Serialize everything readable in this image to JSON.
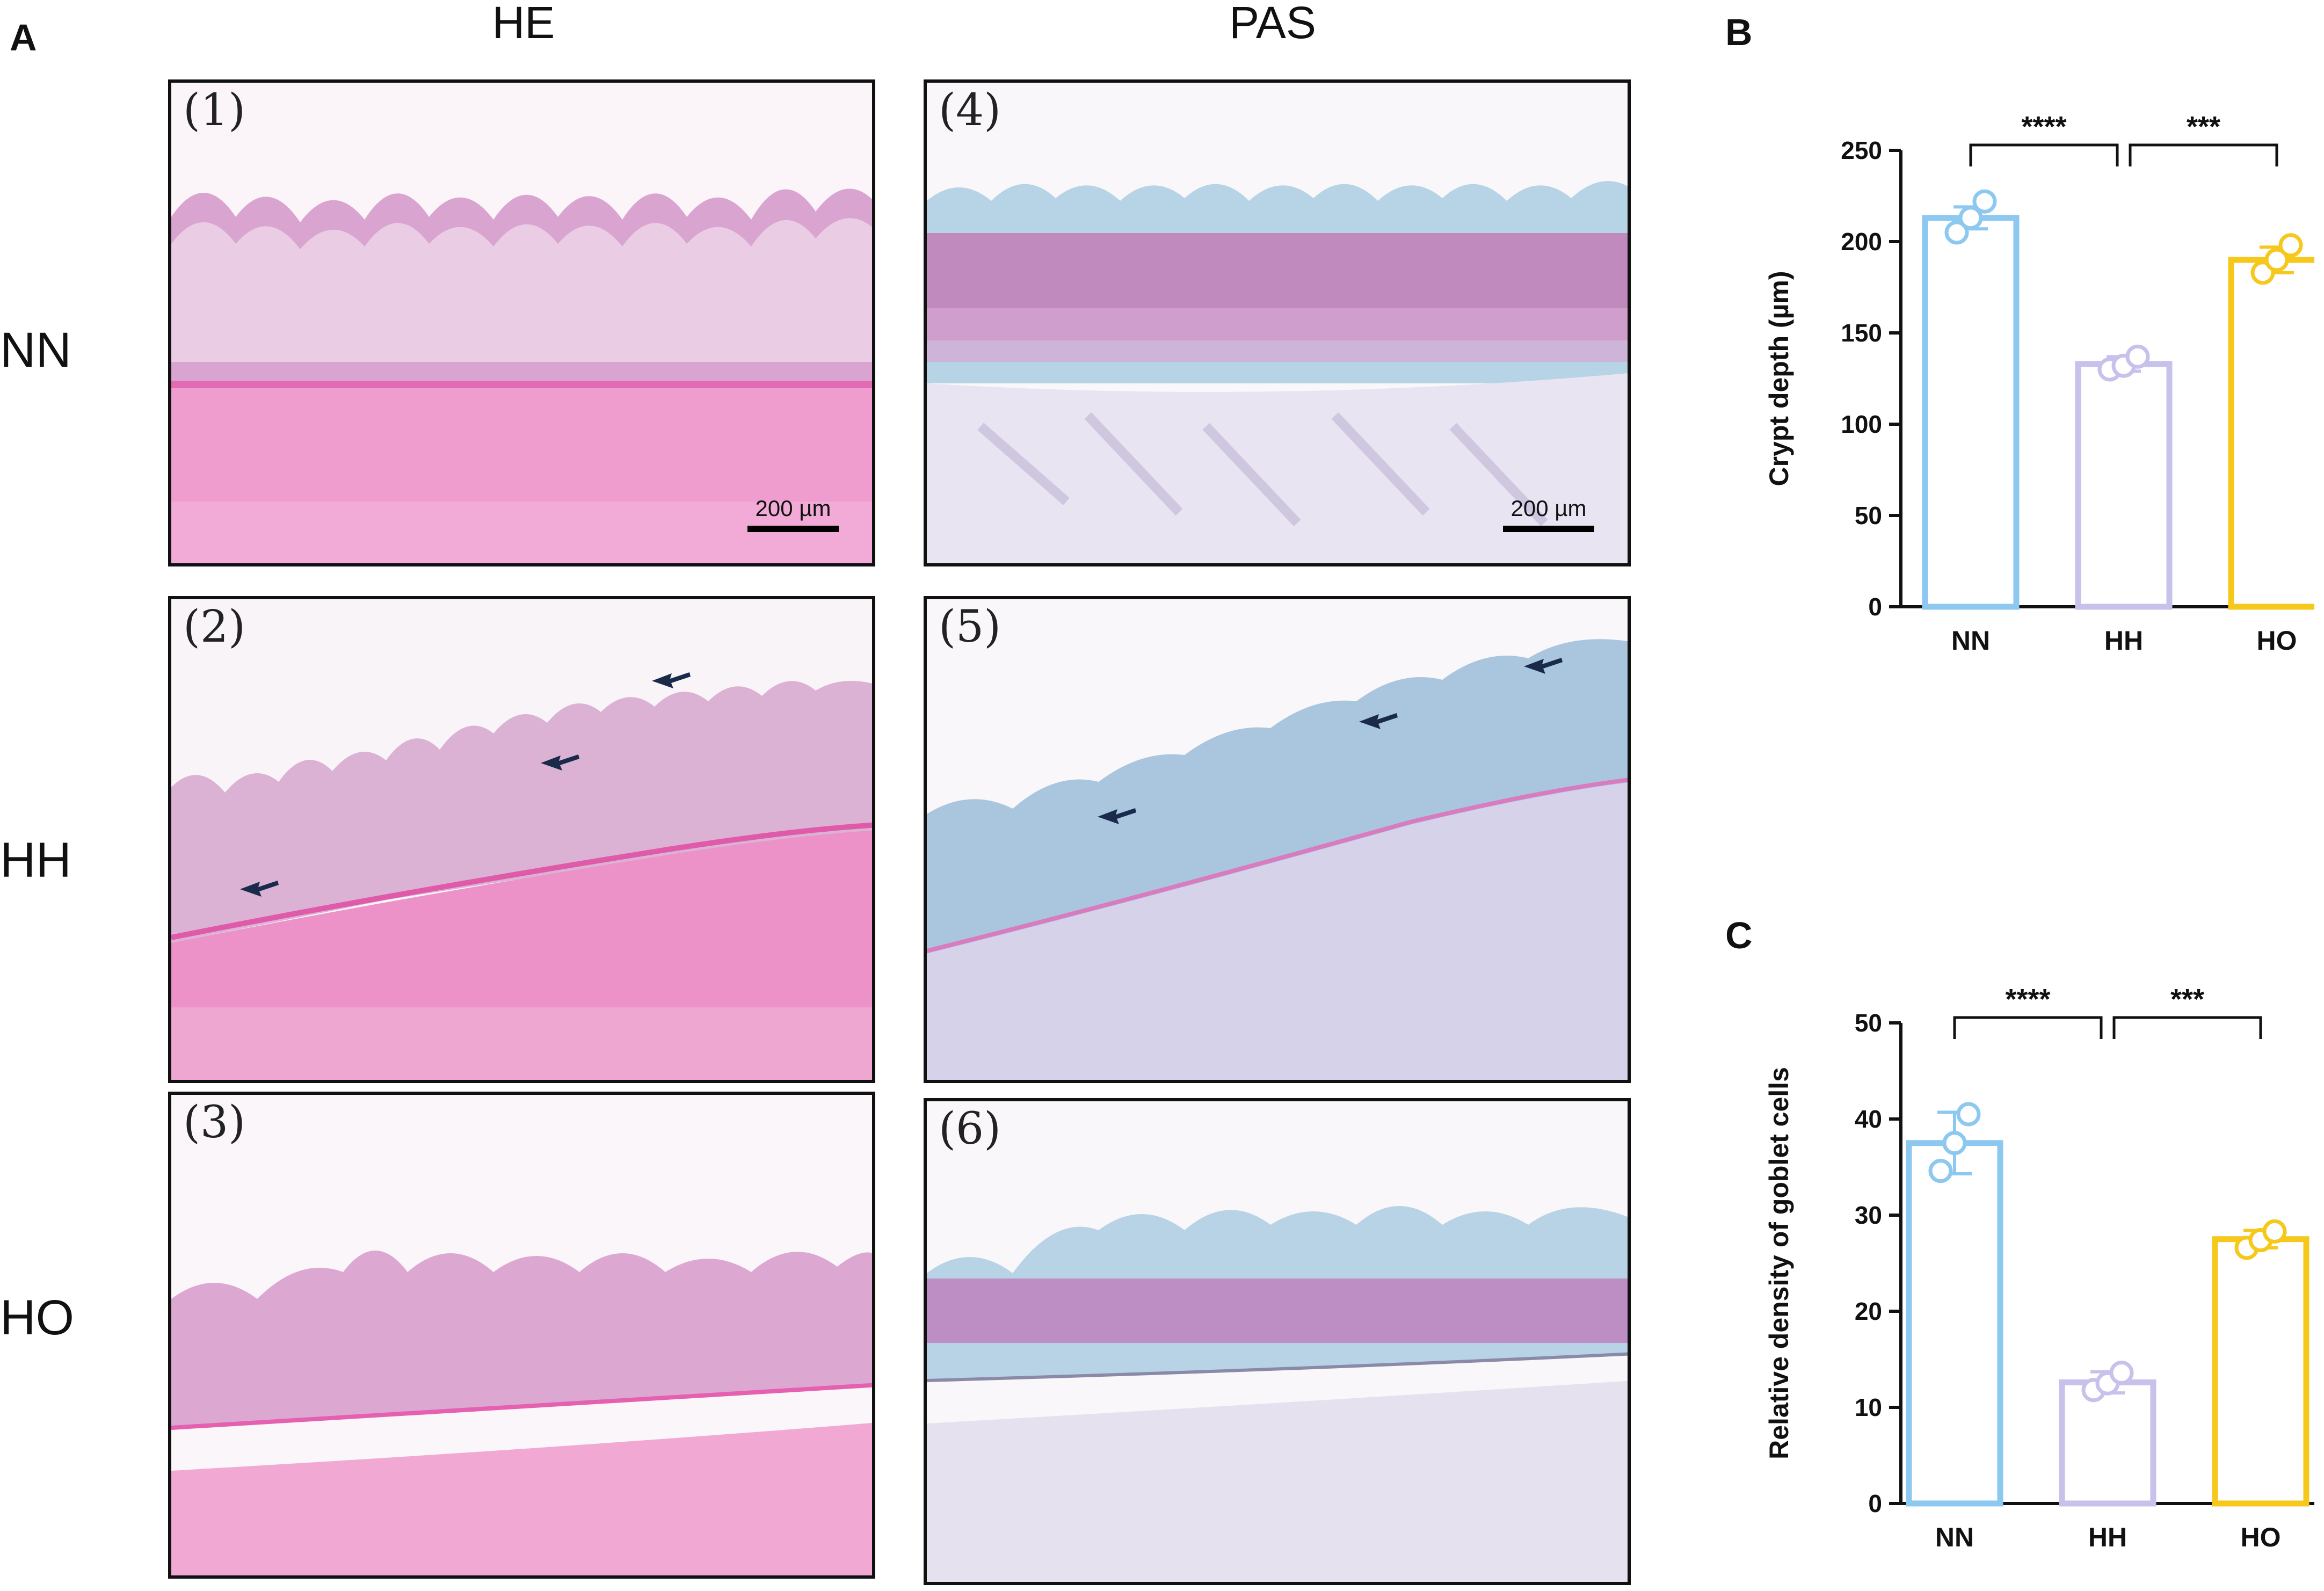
{
  "figure": {
    "panel_labels": {
      "a": "A",
      "b": "B",
      "c": "C"
    },
    "column_headers": [
      "HE",
      "PAS"
    ],
    "row_labels": [
      "NN",
      "HH",
      "HO"
    ],
    "micrographs": [
      {
        "label": "(1)",
        "stain": "HE",
        "group": "NN",
        "scale": "200 µm"
      },
      {
        "label": "(2)",
        "stain": "HE",
        "group": "HH"
      },
      {
        "label": "(3)",
        "stain": "HE",
        "group": "HO"
      },
      {
        "label": "(4)",
        "stain": "PAS",
        "group": "NN",
        "scale": "200 µm"
      },
      {
        "label": "(5)",
        "stain": "PAS",
        "group": "HH"
      },
      {
        "label": "(6)",
        "stain": "PAS",
        "group": "HO"
      }
    ],
    "colors": {
      "NN": "#8cc8f0",
      "HH": "#c6c2ec",
      "HO": "#f7c81c",
      "he_pink": "#ea9fcb",
      "pas_blue": "#a9cde2",
      "pas_magenta": "#c0208a"
    }
  },
  "chart_data": [
    {
      "type": "bar",
      "panel": "B",
      "categories": [
        "NN",
        "HH",
        "HO"
      ],
      "values": [
        213,
        133,
        190
      ],
      "error": [
        6,
        4,
        7
      ],
      "points": [
        [
          205,
          213,
          222
        ],
        [
          130,
          132,
          137
        ],
        [
          183,
          190,
          198
        ]
      ],
      "ylabel": "Crypt depth (µm)",
      "ylim": [
        0,
        250
      ],
      "yticks": [
        0,
        50,
        100,
        150,
        200,
        250
      ],
      "significance": [
        {
          "pair": [
            "NN",
            "HH"
          ],
          "label": "****"
        },
        {
          "pair": [
            "HH",
            "HO"
          ],
          "label": "***"
        }
      ]
    },
    {
      "type": "bar",
      "panel": "C",
      "categories": [
        "NN",
        "HH",
        "HO"
      ],
      "values": [
        37.5,
        12.6,
        27.5
      ],
      "error": [
        3.2,
        1.1,
        0.9
      ],
      "points": [
        [
          34.6,
          37.5,
          40.5
        ],
        [
          11.8,
          12.5,
          13.6
        ],
        [
          26.6,
          27.4,
          28.3
        ]
      ],
      "ylabel": "Relative density of goblet cells",
      "ylim": [
        0,
        50
      ],
      "yticks": [
        0,
        10,
        20,
        30,
        40,
        50
      ],
      "significance": [
        {
          "pair": [
            "NN",
            "HH"
          ],
          "label": "****"
        },
        {
          "pair": [
            "HH",
            "HO"
          ],
          "label": "***"
        }
      ]
    }
  ]
}
